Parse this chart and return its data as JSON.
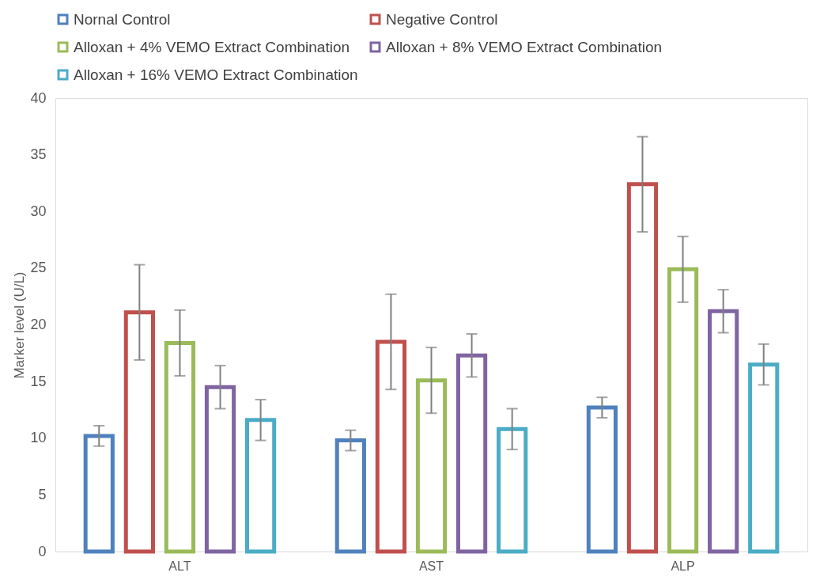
{
  "chart_data": {
    "type": "bar",
    "ylabel": "Marker level (U/L)",
    "categories": [
      "ALT",
      "AST",
      "ALP"
    ],
    "series": [
      {
        "name": "Nornal Control",
        "color": "#4f81bd",
        "values": [
          10.2,
          9.8,
          12.7
        ],
        "errors": [
          0.9,
          0.9,
          0.9
        ]
      },
      {
        "name": "Negative Control",
        "color": "#c0504d",
        "values": [
          21.1,
          18.5,
          32.4
        ],
        "errors": [
          4.2,
          4.2,
          4.2
        ]
      },
      {
        "name": "Alloxan + 4% VEMO Extract Combination",
        "color": "#9bbb59",
        "values": [
          18.4,
          15.1,
          24.9
        ],
        "errors": [
          2.9,
          2.9,
          2.9
        ]
      },
      {
        "name": "Alloxan + 8% VEMO Extract Combination",
        "color": "#8064a2",
        "values": [
          14.5,
          17.3,
          21.2
        ],
        "errors": [
          1.9,
          1.9,
          1.9
        ]
      },
      {
        "name": "Alloxan + 16% VEMO Extract Combination",
        "color": "#4bacc6",
        "values": [
          11.6,
          10.8,
          16.5
        ],
        "errors": [
          1.8,
          1.8,
          1.8
        ]
      }
    ],
    "ylim": [
      0,
      40
    ],
    "yticks": [
      0,
      5,
      10,
      15,
      20,
      25,
      30,
      35,
      40
    ],
    "grid": false,
    "legend": "top"
  }
}
